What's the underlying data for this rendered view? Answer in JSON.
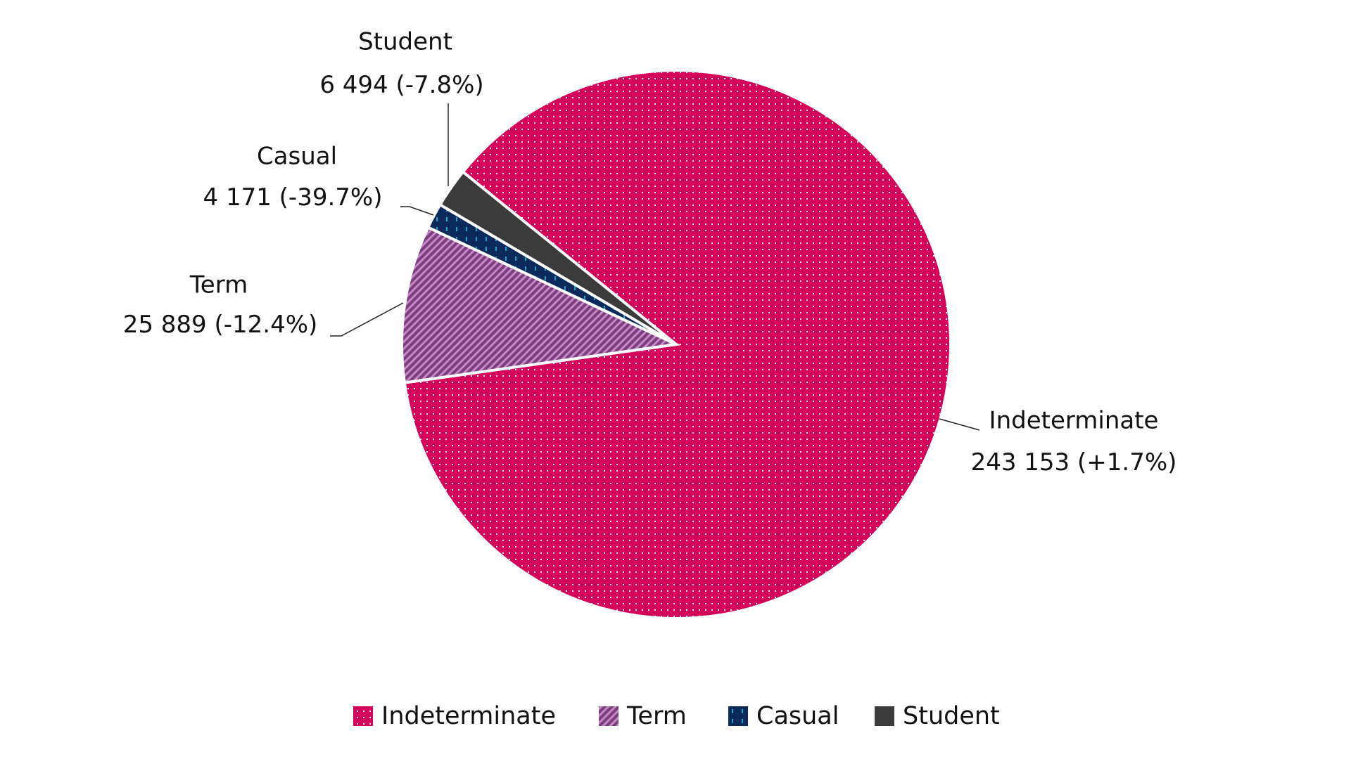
{
  "chart_data": {
    "type": "pie",
    "categories": [
      "Indeterminate",
      "Term",
      "Casual",
      "Student"
    ],
    "values": [
      243153,
      25889,
      4171,
      6494
    ],
    "value_labels": [
      "243 153",
      "25 889",
      "4 171",
      "6 494"
    ],
    "changes": [
      "(+1.7%)",
      "(-12.4%)",
      "(-39.7%)",
      "(-7.8%)"
    ],
    "colors": [
      "#d4005a",
      "#7b3f7d",
      "#0b2a5c",
      "#3b3b3b"
    ],
    "legend": "bottom"
  }
}
